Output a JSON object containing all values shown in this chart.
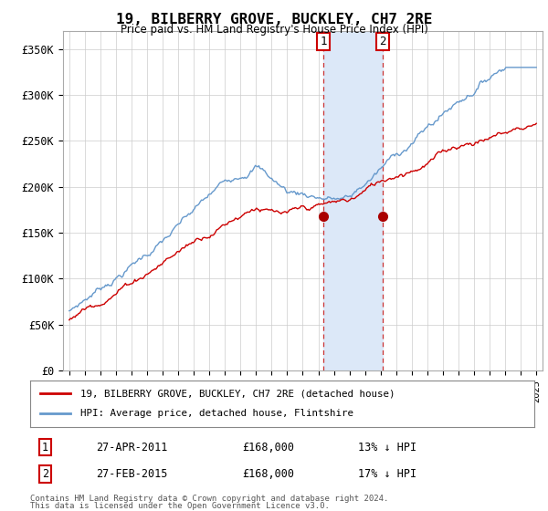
{
  "title": "19, BILBERRY GROVE, BUCKLEY, CH7 2RE",
  "subtitle": "Price paid vs. HM Land Registry's House Price Index (HPI)",
  "ylabel_ticks": [
    "£0",
    "£50K",
    "£100K",
    "£150K",
    "£200K",
    "£250K",
    "£300K",
    "£350K"
  ],
  "ytick_values": [
    0,
    50000,
    100000,
    150000,
    200000,
    250000,
    300000,
    350000
  ],
  "ylim": [
    0,
    370000
  ],
  "sale1_x": 2011.32,
  "sale2_x": 2015.15,
  "sale1_price": 168000,
  "sale2_price": 168000,
  "shade_color": "#dce8f8",
  "sale_marker_color": "#aa0000",
  "hpi_line_color": "#6699cc",
  "price_line_color": "#cc0000",
  "legend_label_price": "19, BILBERRY GROVE, BUCKLEY, CH7 2RE (detached house)",
  "legend_label_hpi": "HPI: Average price, detached house, Flintshire",
  "sale1_date": "27-APR-2011",
  "sale2_date": "27-FEB-2015",
  "sale1_pct": "13% ↓ HPI",
  "sale2_pct": "17% ↓ HPI",
  "footnote1": "Contains HM Land Registry data © Crown copyright and database right 2024.",
  "footnote2": "This data is licensed under the Open Government Licence v3.0.",
  "background_color": "#ffffff",
  "grid_color": "#cccccc",
  "label1_box_color": "#cc0000",
  "label2_box_color": "#cc0000"
}
